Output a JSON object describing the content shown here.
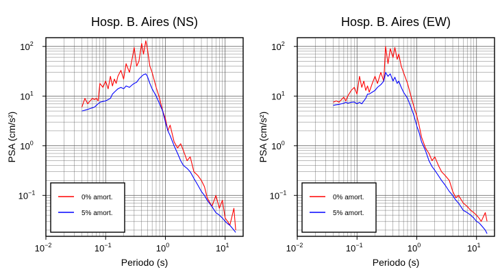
{
  "chart_data": [
    {
      "type": "line",
      "title": "Hosp. B. Aires (NS)",
      "xlabel": "Periodo (s)",
      "ylabel": "PSA (cm/s²)",
      "x_scale": "log",
      "y_scale": "log",
      "xlim": [
        0.01,
        20
      ],
      "ylim": [
        0.015,
        150
      ],
      "x_ticks": [
        0.01,
        0.1,
        1,
        10
      ],
      "x_tick_labels": [
        "10",
        "10",
        "10",
        "10"
      ],
      "x_tick_exponents": [
        "−2",
        "−1",
        "0",
        "1"
      ],
      "y_ticks": [
        0.1,
        1,
        10,
        100
      ],
      "y_tick_labels": [
        "10",
        "10",
        "10",
        "10"
      ],
      "y_tick_exponents": [
        "−1",
        "0",
        "1",
        "2"
      ],
      "grid": true,
      "legend_position": "bottom-left",
      "series": [
        {
          "name": "0% amort.",
          "color": "#ff0000",
          "x": [
            0.04,
            0.045,
            0.05,
            0.055,
            0.06,
            0.065,
            0.07,
            0.075,
            0.08,
            0.09,
            0.1,
            0.11,
            0.12,
            0.13,
            0.14,
            0.15,
            0.16,
            0.18,
            0.2,
            0.22,
            0.25,
            0.28,
            0.3,
            0.33,
            0.36,
            0.4,
            0.43,
            0.47,
            0.5,
            0.55,
            0.6,
            0.7,
            0.8,
            0.9,
            1.0,
            1.1,
            1.2,
            1.4,
            1.6,
            1.8,
            2.0,
            2.3,
            2.6,
            3.0,
            3.5,
            4.0,
            4.5,
            5.0,
            6.0,
            7.0,
            8.0,
            9.0,
            10.0,
            11.0,
            12.0,
            14.0,
            15.0
          ],
          "y": [
            6.0,
            9.0,
            7.0,
            8.0,
            9.0,
            8.5,
            9.0,
            8.0,
            18.0,
            15.0,
            20.0,
            14.0,
            25.0,
            16.0,
            22.0,
            18.0,
            25.0,
            33.0,
            22.0,
            45.0,
            30.0,
            60.0,
            95.0,
            40.0,
            50.0,
            115.0,
            70.0,
            130.0,
            90.0,
            40.0,
            30.0,
            15.0,
            9.0,
            5.0,
            3.5,
            2.0,
            2.6,
            1.2,
            0.9,
            1.1,
            0.8,
            0.5,
            0.6,
            0.3,
            0.25,
            0.2,
            0.15,
            0.09,
            0.06,
            0.1,
            0.055,
            0.08,
            0.035,
            0.03,
            0.025,
            0.055,
            0.02
          ]
        },
        {
          "name": "5% amort.",
          "color": "#0000ff",
          "x": [
            0.04,
            0.045,
            0.05,
            0.055,
            0.06,
            0.065,
            0.07,
            0.075,
            0.08,
            0.09,
            0.1,
            0.11,
            0.12,
            0.13,
            0.14,
            0.15,
            0.16,
            0.18,
            0.2,
            0.22,
            0.25,
            0.28,
            0.3,
            0.33,
            0.36,
            0.4,
            0.43,
            0.47,
            0.5,
            0.55,
            0.6,
            0.7,
            0.8,
            0.9,
            1.0,
            1.1,
            1.2,
            1.4,
            1.6,
            1.8,
            2.0,
            2.3,
            2.6,
            3.0,
            3.5,
            4.0,
            4.5,
            5.0,
            6.0,
            7.0,
            8.0,
            9.0,
            10.0,
            11.0,
            12.0,
            14.0,
            15.0
          ],
          "y": [
            5.0,
            5.2,
            5.4,
            5.6,
            5.8,
            6.0,
            6.5,
            7.0,
            7.5,
            7.8,
            8.0,
            8.5,
            9.0,
            11.0,
            12.0,
            13.0,
            14.0,
            15.0,
            14.0,
            16.0,
            15.0,
            17.0,
            18.0,
            19.0,
            22.0,
            25.0,
            27.0,
            28.0,
            25.0,
            18.0,
            14.0,
            10.0,
            7.0,
            5.0,
            3.0,
            2.0,
            1.6,
            1.0,
            0.7,
            0.5,
            0.4,
            0.35,
            0.3,
            0.22,
            0.16,
            0.12,
            0.1,
            0.08,
            0.06,
            0.045,
            0.04,
            0.035,
            0.03,
            0.027,
            0.025,
            0.02,
            0.018
          ]
        }
      ]
    },
    {
      "type": "line",
      "title": "Hosp. B. Aires (EW)",
      "xlabel": "Periodo (s)",
      "ylabel": "PSA (cm/s²)",
      "x_scale": "log",
      "y_scale": "log",
      "xlim": [
        0.01,
        20
      ],
      "ylim": [
        0.015,
        150
      ],
      "x_ticks": [
        0.01,
        0.1,
        1,
        10
      ],
      "x_tick_labels": [
        "10",
        "10",
        "10",
        "10"
      ],
      "x_tick_exponents": [
        "−2",
        "−1",
        "0",
        "1"
      ],
      "y_ticks": [
        0.1,
        1,
        10,
        100
      ],
      "y_tick_labels": [
        "10",
        "10",
        "10",
        "10"
      ],
      "y_tick_exponents": [
        "−1",
        "0",
        "1",
        "2"
      ],
      "grid": true,
      "legend_position": "bottom-left",
      "series": [
        {
          "name": "0% amort.",
          "color": "#ff0000",
          "x": [
            0.04,
            0.045,
            0.05,
            0.055,
            0.06,
            0.065,
            0.07,
            0.08,
            0.09,
            0.1,
            0.11,
            0.12,
            0.13,
            0.14,
            0.15,
            0.16,
            0.18,
            0.2,
            0.22,
            0.25,
            0.28,
            0.3,
            0.33,
            0.36,
            0.4,
            0.43,
            0.47,
            0.5,
            0.55,
            0.6,
            0.7,
            0.8,
            0.9,
            1.0,
            1.1,
            1.2,
            1.4,
            1.6,
            1.8,
            2.0,
            2.3,
            2.6,
            3.0,
            3.5,
            4.0,
            4.5,
            5.0,
            6.0,
            7.0,
            8.0,
            9.0,
            10.0,
            11.0,
            12.0,
            14.0,
            15.0
          ],
          "y": [
            7.5,
            8.0,
            7.5,
            8.5,
            9.5,
            8.0,
            10.0,
            13.0,
            15.0,
            11.0,
            25.0,
            15.0,
            20.0,
            13.0,
            16.0,
            12.0,
            18.0,
            25.0,
            18.0,
            30.0,
            20.0,
            100.0,
            45.0,
            90.0,
            60.0,
            95.0,
            55.0,
            70.0,
            40.0,
            30.0,
            18.0,
            10.0,
            6.0,
            4.0,
            2.5,
            1.5,
            0.9,
            0.7,
            0.5,
            0.6,
            0.4,
            0.3,
            0.25,
            0.2,
            0.12,
            0.09,
            0.1,
            0.07,
            0.06,
            0.05,
            0.045,
            0.04,
            0.035,
            0.03,
            0.045,
            0.03
          ]
        },
        {
          "name": "5% amort.",
          "color": "#0000ff",
          "x": [
            0.04,
            0.045,
            0.05,
            0.055,
            0.06,
            0.065,
            0.07,
            0.08,
            0.09,
            0.1,
            0.11,
            0.12,
            0.13,
            0.14,
            0.15,
            0.16,
            0.18,
            0.2,
            0.22,
            0.25,
            0.28,
            0.3,
            0.33,
            0.36,
            0.4,
            0.43,
            0.47,
            0.5,
            0.55,
            0.6,
            0.7,
            0.8,
            0.9,
            1.0,
            1.1,
            1.2,
            1.4,
            1.6,
            1.8,
            2.0,
            2.3,
            2.6,
            3.0,
            3.5,
            4.0,
            4.5,
            5.0,
            6.0,
            7.0,
            8.0,
            9.0,
            10.0,
            11.0,
            12.0,
            14.0,
            15.0
          ],
          "y": [
            6.5,
            6.7,
            6.8,
            7.0,
            7.2,
            7.5,
            7.2,
            7.5,
            7.6,
            7.0,
            7.5,
            7.0,
            8.0,
            9.0,
            11.0,
            11.0,
            12.0,
            13.0,
            15.0,
            17.0,
            20.0,
            30.0,
            25.0,
            28.0,
            20.0,
            24.0,
            18.0,
            20.0,
            15.0,
            12.0,
            9.0,
            6.0,
            4.0,
            2.5,
            1.8,
            1.2,
            0.8,
            0.5,
            0.38,
            0.32,
            0.25,
            0.2,
            0.16,
            0.12,
            0.1,
            0.08,
            0.07,
            0.05,
            0.045,
            0.04,
            0.035,
            0.03,
            0.028,
            0.025,
            0.02,
            0.017
          ]
        }
      ]
    }
  ]
}
